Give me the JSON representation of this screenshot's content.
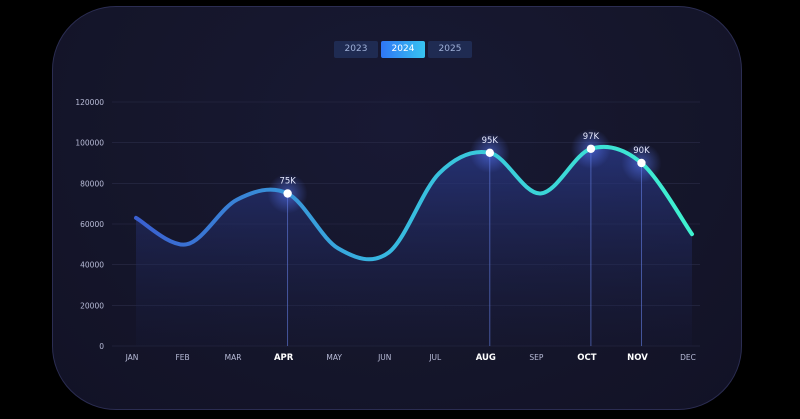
{
  "year_tabs": [
    {
      "label": "2023",
      "active": false
    },
    {
      "label": "2024",
      "active": true
    },
    {
      "label": "2025",
      "active": false
    }
  ],
  "colors": {
    "line_start": "#3a5fd0",
    "line_end": "#3ff2d0",
    "area": "#2a3a8a",
    "grid": "#2a2c48",
    "tick_text": "#b8bcd8"
  },
  "chart_data": {
    "type": "area",
    "categories": [
      "JAN",
      "FEB",
      "MAR",
      "APR",
      "MAY",
      "JUN",
      "JUL",
      "AUG",
      "SEP",
      "OCT",
      "NOV",
      "DEC"
    ],
    "values": [
      63000,
      50000,
      72000,
      75000,
      48000,
      46000,
      85000,
      95000,
      75000,
      97000,
      90000,
      55000
    ],
    "highlighted": [
      {
        "category": "APR",
        "label": "75K"
      },
      {
        "category": "AUG",
        "label": "95K"
      },
      {
        "category": "OCT",
        "label": "97K"
      },
      {
        "category": "NOV",
        "label": "90K"
      }
    ],
    "y_ticks": [
      "0",
      "20000",
      "40000",
      "60000",
      "80000",
      "100000",
      "120000"
    ],
    "ylim": [
      0,
      120000
    ],
    "title": "",
    "xlabel": "",
    "ylabel": "",
    "grid": true
  }
}
